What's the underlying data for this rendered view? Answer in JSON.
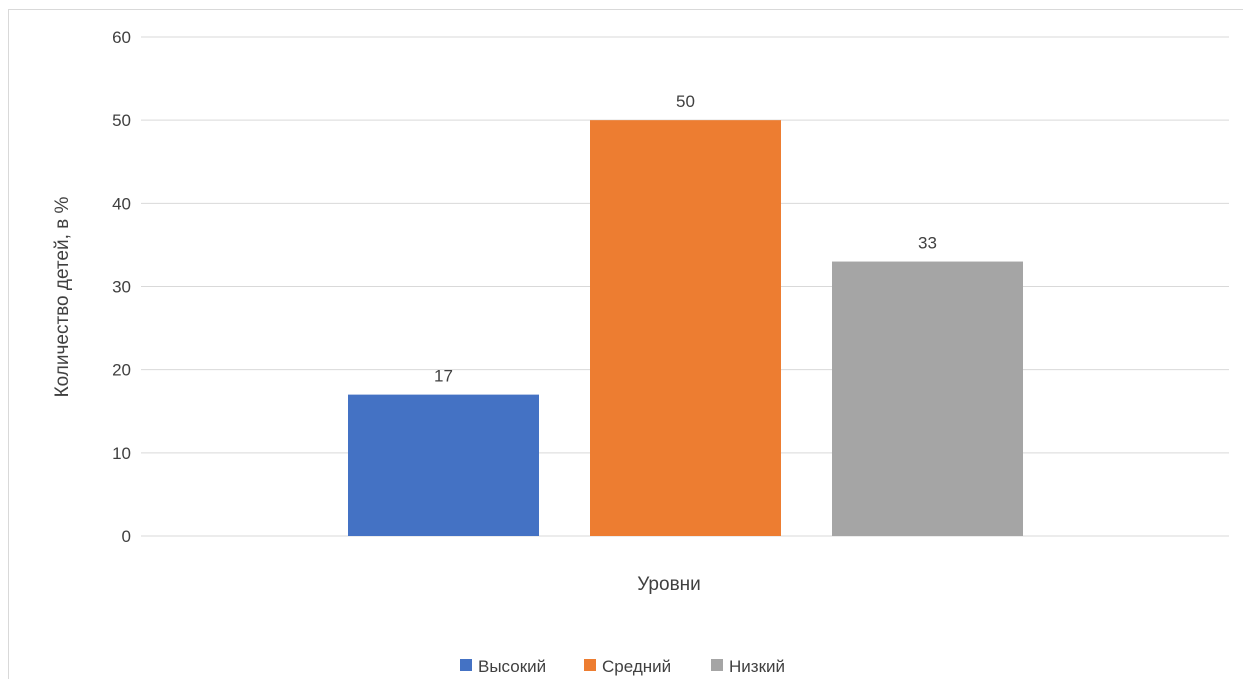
{
  "chart_data": {
    "type": "bar",
    "categories": [
      "Уровни"
    ],
    "series": [
      {
        "name": "Высокий",
        "values": [
          17
        ],
        "color": "#4472c4"
      },
      {
        "name": "Средний",
        "values": [
          50
        ],
        "color": "#ed7d31"
      },
      {
        "name": "Низкий",
        "values": [
          33
        ],
        "color": "#a5a5a5"
      }
    ],
    "ylabel": "Количество детей, в %",
    "xlabel": "Уровни",
    "ylim": [
      0,
      60
    ],
    "yticks": [
      "0",
      "10",
      "20",
      "30",
      "40",
      "50",
      "60"
    ],
    "grid": true,
    "legend": "bottom-center",
    "data_labels": true
  }
}
